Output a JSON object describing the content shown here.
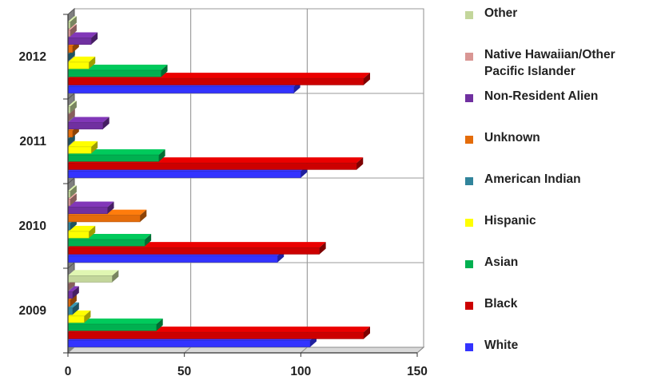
{
  "chart_data": {
    "type": "bar",
    "orientation": "horizontal",
    "three_d": true,
    "title": "",
    "xlabel": "",
    "ylabel": "",
    "categories": [
      "2009",
      "2010",
      "2011",
      "2012"
    ],
    "xlim": [
      0,
      150
    ],
    "x_ticks": [
      "0",
      "50",
      "100",
      "150"
    ],
    "grid": "vertical",
    "legend_position": "right",
    "series": [
      {
        "name": "White",
        "color": "#3333ff",
        "values": [
          104,
          90,
          100,
          97
        ]
      },
      {
        "name": "Black",
        "color": "#cc0000",
        "values": [
          127,
          108,
          124,
          127
        ]
      },
      {
        "name": "Asian",
        "color": "#00b050",
        "values": [
          38,
          33,
          39,
          40
        ]
      },
      {
        "name": "Hispanic",
        "color": "#ffff00",
        "values": [
          7,
          9,
          10,
          9
        ]
      },
      {
        "name": "American Indian",
        "color": "#31849b",
        "values": [
          2,
          1,
          0,
          0
        ]
      },
      {
        "name": "Unknown",
        "color": "#e46c0a",
        "values": [
          1,
          31,
          2,
          2
        ]
      },
      {
        "name": "Non-Resident Alien",
        "color": "#7030a0",
        "values": [
          2,
          17,
          15,
          10
        ]
      },
      {
        "name": "Native Hawaiian/Other Pacific Islander",
        "color": "#d99694",
        "values": [
          0,
          1,
          0,
          1
        ]
      },
      {
        "name": "Other",
        "color": "#c3d69b",
        "values": [
          19,
          1,
          1,
          1
        ]
      }
    ],
    "legend_entries": [
      {
        "series": 8,
        "lines": [
          "Other"
        ]
      },
      {
        "series": 7,
        "lines": [
          "Native Hawaiian/Other",
          "Pacific Islander"
        ]
      },
      {
        "series": 6,
        "lines": [
          "Non-Resident Alien"
        ]
      },
      {
        "series": 5,
        "lines": [
          "Unknown"
        ]
      },
      {
        "series": 4,
        "lines": [
          "American Indian"
        ]
      },
      {
        "series": 3,
        "lines": [
          "Hispanic"
        ]
      },
      {
        "series": 2,
        "lines": [
          "Asian"
        ]
      },
      {
        "series": 1,
        "lines": [
          "Black"
        ]
      },
      {
        "series": 0,
        "lines": [
          "White"
        ]
      }
    ]
  }
}
